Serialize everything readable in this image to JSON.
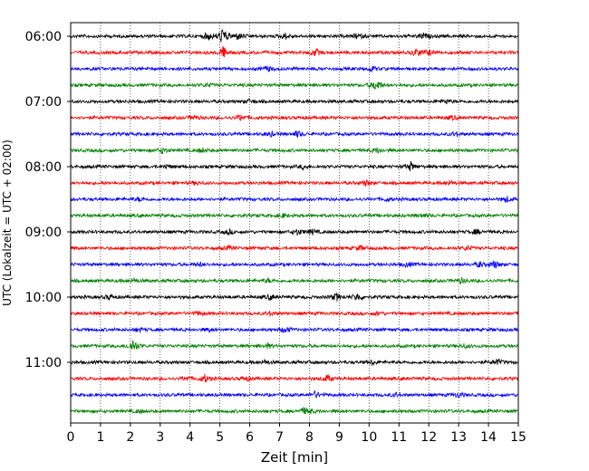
{
  "chart_data": {
    "type": "line",
    "title": "",
    "xlabel": "Zeit  [min]",
    "ylabel": "UTC (Lokalzeit = UTC + 02:00)",
    "xlim": [
      0,
      15
    ],
    "x_ticks": [
      "0",
      "1",
      "2",
      "3",
      "4",
      "5",
      "6",
      "7",
      "8",
      "9",
      "10",
      "11",
      "12",
      "13",
      "14",
      "15"
    ],
    "y_tick_labels": [
      "06:00",
      "07:00",
      "08:00",
      "09:00",
      "10:00",
      "11:00"
    ],
    "grid": "vertical dotted lines at each minute",
    "trace_colors": [
      "#000000",
      "#ff0000",
      "#0000ff",
      "#008000"
    ],
    "traces": [
      {
        "start": "06:00",
        "events": [
          [
            5.1,
            1.0
          ],
          [
            4.6,
            0.45
          ],
          [
            5.6,
            0.4
          ],
          [
            7.2,
            0.3
          ],
          [
            9.6,
            0.3
          ],
          [
            11.8,
            0.35
          ]
        ]
      },
      {
        "start": "06:15",
        "events": [
          [
            5.1,
            0.7
          ],
          [
            8.2,
            0.45
          ],
          [
            11.6,
            0.5
          ],
          [
            12.0,
            0.3
          ]
        ]
      },
      {
        "start": "06:30",
        "events": [
          [
            6.6,
            0.3
          ],
          [
            10.1,
            0.3
          ]
        ]
      },
      {
        "start": "06:45",
        "events": [
          [
            10.2,
            0.4
          ],
          [
            10.3,
            0.3
          ],
          [
            4.6,
            0.2
          ]
        ]
      },
      {
        "start": "07:00",
        "events": [
          [
            6.0,
            0.2
          ],
          [
            12.6,
            0.2
          ]
        ]
      },
      {
        "start": "07:15",
        "events": [
          [
            5.7,
            0.35
          ],
          [
            4.1,
            0.25
          ],
          [
            12.8,
            0.2
          ]
        ]
      },
      {
        "start": "07:30",
        "events": [
          [
            7.6,
            0.35
          ],
          [
            6.7,
            0.25
          ],
          [
            12.9,
            0.25
          ]
        ]
      },
      {
        "start": "07:45",
        "events": [
          [
            3.1,
            0.35
          ],
          [
            4.4,
            0.25
          ],
          [
            10.3,
            0.3
          ]
        ]
      },
      {
        "start": "08:00",
        "events": [
          [
            11.4,
            0.5
          ],
          [
            3.2,
            0.2
          ],
          [
            7.8,
            0.2
          ]
        ]
      },
      {
        "start": "08:15",
        "events": [
          [
            9.9,
            0.3
          ],
          [
            12.7,
            0.25
          ],
          [
            4.2,
            0.2
          ]
        ]
      },
      {
        "start": "08:30",
        "events": [
          [
            14.6,
            0.35
          ],
          [
            10.6,
            0.2
          ],
          [
            2.3,
            0.2
          ]
        ]
      },
      {
        "start": "08:45",
        "events": [
          [
            7.1,
            0.2
          ],
          [
            11.8,
            0.2
          ]
        ]
      },
      {
        "start": "09:00",
        "events": [
          [
            7.6,
            0.35
          ],
          [
            8.1,
            0.3
          ],
          [
            5.3,
            0.25
          ],
          [
            13.6,
            0.25
          ]
        ]
      },
      {
        "start": "09:15",
        "events": [
          [
            9.7,
            0.3
          ],
          [
            5.3,
            0.2
          ],
          [
            13.3,
            0.25
          ]
        ]
      },
      {
        "start": "09:30",
        "events": [
          [
            14.2,
            0.45
          ],
          [
            13.7,
            0.3
          ],
          [
            4.3,
            0.2
          ],
          [
            11.3,
            0.25
          ]
        ]
      },
      {
        "start": "09:45",
        "events": [
          [
            2.1,
            0.25
          ],
          [
            6.6,
            0.2
          ],
          [
            13.1,
            0.25
          ]
        ]
      },
      {
        "start": "10:00",
        "events": [
          [
            8.9,
            0.45
          ],
          [
            9.6,
            0.45
          ],
          [
            6.7,
            0.3
          ],
          [
            1.3,
            0.25
          ]
        ]
      },
      {
        "start": "10:15",
        "events": [
          [
            4.3,
            0.2
          ],
          [
            6.7,
            0.25
          ],
          [
            10.3,
            0.2
          ]
        ]
      },
      {
        "start": "10:30",
        "events": [
          [
            7.2,
            0.35
          ],
          [
            2.3,
            0.25
          ],
          [
            4.6,
            0.2
          ]
        ]
      },
      {
        "start": "10:45",
        "events": [
          [
            2.1,
            0.9
          ],
          [
            6.6,
            0.25
          ],
          [
            13.2,
            0.2
          ]
        ]
      },
      {
        "start": "11:00",
        "events": [
          [
            14.3,
            0.35
          ],
          [
            6.5,
            0.25
          ],
          [
            10.1,
            0.25
          ]
        ]
      },
      {
        "start": "11:15",
        "events": [
          [
            4.5,
            0.45
          ],
          [
            8.6,
            0.4
          ],
          [
            3.9,
            0.25
          ],
          [
            5.9,
            0.25
          ]
        ]
      },
      {
        "start": "11:30",
        "events": [
          [
            8.2,
            0.35
          ],
          [
            13.0,
            0.3
          ],
          [
            10.9,
            0.2
          ]
        ]
      },
      {
        "start": "11:45",
        "events": [
          [
            7.8,
            0.3
          ],
          [
            8.0,
            0.25
          ],
          [
            2.3,
            0.2
          ]
        ]
      }
    ]
  }
}
